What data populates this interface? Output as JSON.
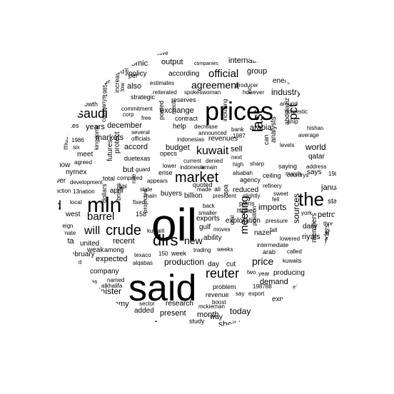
{
  "words": [
    {
      "t": "oil"
    },
    {
      "t": "said"
    },
    {
      "t": "prices"
    },
    {
      "t": "mln"
    },
    {
      "t": "the"
    },
    {
      "t": "dlrs"
    },
    {
      "t": "market"
    },
    {
      "t": "crude"
    },
    {
      "t": "reuter"
    },
    {
      "t": "saudi"
    },
    {
      "t": "kuwait"
    },
    {
      "t": "last"
    },
    {
      "t": "will"
    },
    {
      "t": "barrel"
    },
    {
      "t": "official"
    },
    {
      "t": "agreement"
    },
    {
      "t": "industry"
    },
    {
      "t": "production"
    },
    {
      "t": "price"
    },
    {
      "t": "new"
    },
    {
      "t": "world"
    },
    {
      "t": "january"
    },
    {
      "t": "petroleum"
    },
    {
      "t": "minister"
    },
    {
      "t": "pct"
    },
    {
      "t": "meeting"
    },
    {
      "t": "imports"
    },
    {
      "t": "demand"
    },
    {
      "t": "today"
    },
    {
      "t": "month"
    },
    {
      "t": "hold"
    },
    {
      "t": "exchange"
    },
    {
      "t": "sources"
    },
    {
      "t": "international"
    },
    {
      "t": "group"
    },
    {
      "t": "economic"
    },
    {
      "t": "output"
    },
    {
      "t": "policy"
    },
    {
      "t": "according"
    },
    {
      "t": "energy"
    },
    {
      "t": "also"
    },
    {
      "t": "years"
    },
    {
      "t": "december"
    },
    {
      "t": "arabia"
    },
    {
      "t": "accord"
    },
    {
      "t": "budget"
    },
    {
      "t": "sell"
    },
    {
      "t": "markets"
    },
    {
      "t": "exports"
    },
    {
      "t": "but"
    },
    {
      "t": "april"
    },
    {
      "t": "quota"
    },
    {
      "t": "recent"
    },
    {
      "t": "expected"
    },
    {
      "t": "economy"
    },
    {
      "t": "present"
    },
    {
      "t": "government"
    },
    {
      "t": "sheikh"
    },
    {
      "t": "reduced"
    },
    {
      "t": "producing"
    },
    {
      "t": "riyals"
    },
    {
      "t": "daily"
    },
    {
      "t": "states"
    },
    {
      "t": "traders"
    },
    {
      "t": "members"
    },
    {
      "t": "expenditure"
    },
    {
      "t": "since"
    },
    {
      "t": "research"
    },
    {
      "t": "added"
    },
    {
      "t": "way"
    },
    {
      "t": "day"
    },
    {
      "t": "cut"
    },
    {
      "t": "company"
    },
    {
      "t": "they"
    },
    {
      "t": "west"
    },
    {
      "t": "february"
    },
    {
      "t": "united"
    },
    {
      "t": "nymex"
    },
    {
      "t": "meet"
    },
    {
      "t": "now"
    },
    {
      "t": "must"
    },
    {
      "t": "emirates"
    },
    {
      "t": "growth"
    },
    {
      "t": "never"
    },
    {
      "t": "asked"
    },
    {
      "t": "per"
    },
    {
      "t": "strategic"
    },
    {
      "t": "reserves"
    },
    {
      "t": "contract"
    },
    {
      "t": "spokeswoman"
    },
    {
      "t": "producer"
    },
    {
      "t": "however"
    },
    {
      "t": "analysts"
    },
    {
      "t": "levels"
    },
    {
      "t": "saying"
    },
    {
      "t": "says"
    },
    {
      "t": "qatar"
    },
    {
      "t": "ceiling"
    },
    {
      "t": "refinery"
    },
    {
      "t": "sweet"
    },
    {
      "t": "fell"
    },
    {
      "t": "higher"
    },
    {
      "t": "plans"
    },
    {
      "t": "agency"
    },
    {
      "t": "billion"
    },
    {
      "t": "quoted"
    },
    {
      "t": "buyers"
    },
    {
      "t": "gulf"
    },
    {
      "t": "ability"
    },
    {
      "t": "exploration"
    },
    {
      "t": "pressure"
    },
    {
      "t": "nazer"
    },
    {
      "t": "arab"
    },
    {
      "t": "called"
    },
    {
      "t": "week"
    },
    {
      "t": "problem"
    },
    {
      "t": "revenue"
    },
    {
      "t": "export"
    },
    {
      "t": "study"
    },
    {
      "t": "boost"
    },
    {
      "t": "mckiernan"
    },
    {
      "t": "weeks"
    },
    {
      "t": "trading"
    },
    {
      "t": "moves"
    },
    {
      "t": "texaco"
    },
    {
      "t": "alqabas"
    },
    {
      "t": "sector"
    },
    {
      "t": "future"
    },
    {
      "t": "alkhalifa"
    },
    {
      "t": "arabias"
    },
    {
      "t": "named"
    },
    {
      "t": "published"
    },
    {
      "t": "estimate"
    },
    {
      "t": "foreign"
    },
    {
      "t": "action"
    },
    {
      "t": "13nation"
    },
    {
      "t": "development"
    },
    {
      "t": "total"
    },
    {
      "t": "compared"
    },
    {
      "t": "duetexas"
    },
    {
      "t": "officials"
    },
    {
      "t": "several"
    },
    {
      "t": "free"
    },
    {
      "t": "corp"
    },
    {
      "t": "commitment"
    },
    {
      "t": "estimates"
    },
    {
      "t": "reiterated"
    },
    {
      "t": "companies"
    },
    {
      "t": "effective"
    },
    {
      "t": "inc"
    },
    {
      "t": "bank"
    },
    {
      "t": "1987"
    },
    {
      "t": "announced"
    },
    {
      "t": "decrease"
    },
    {
      "t": "indonesias"
    },
    {
      "t": "help"
    },
    {
      "t": "posted"
    },
    {
      "t": "opecs"
    },
    {
      "t": "erise"
    },
    {
      "t": "lower"
    },
    {
      "t": "current"
    },
    {
      "t": "denied"
    },
    {
      "t": "indonesia"
    },
    {
      "t": "remain"
    },
    {
      "t": "revenues"
    },
    {
      "t": "next"
    },
    {
      "t": "high"
    },
    {
      "t": "sharp"
    },
    {
      "t": "alsabah"
    },
    {
      "t": "president"
    },
    {
      "t": "slightly"
    },
    {
      "t": "made"
    },
    {
      "t": "ali"
    },
    {
      "t": "state"
    },
    {
      "t": "main"
    },
    {
      "t": "appears"
    },
    {
      "t": "guard"
    },
    {
      "t": "fixed"
    },
    {
      "t": "brings"
    },
    {
      "t": "158"
    },
    {
      "t": "among"
    },
    {
      "t": "weak"
    },
    {
      "t": "150"
    },
    {
      "t": "projected"
    },
    {
      "t": "smaller"
    },
    {
      "t": "back"
    },
    {
      "t": "spa"
    },
    {
      "t": "real"
    },
    {
      "t": "position"
    },
    {
      "t": "intermediate"
    },
    {
      "t": "lowered"
    },
    {
      "t": "kuwaits"
    },
    {
      "t": "fall"
    },
    {
      "t": "two"
    },
    {
      "t": "say"
    },
    {
      "t": "198788"
    },
    {
      "t": "year"
    },
    {
      "t": "york"
    },
    {
      "t": "three"
    },
    {
      "t": "efp"
    },
    {
      "t": "grade"
    },
    {
      "t": "1985"
    },
    {
      "t": "address"
    },
    {
      "t": "countrys"
    },
    {
      "t": "march"
    },
    {
      "t": "average"
    },
    {
      "t": "hisham"
    },
    {
      "t": "ship"
    },
    {
      "t": "domestic"
    },
    {
      "t": "around"
    },
    {
      "t": "abdulaziz"
    },
    {
      "t": "can"
    },
    {
      "t": "companys"
    },
    {
      "t": "bbl"
    },
    {
      "t": "low"
    },
    {
      "t": "set"
    },
    {
      "t": "increase"
    },
    {
      "t": "kingdoms"
    },
    {
      "t": "agreed"
    },
    {
      "t": "six"
    },
    {
      "t": "1986"
    },
    {
      "t": "local"
    },
    {
      "t": "rule"
    },
    {
      "t": "futures"
    },
    {
      "t": "protect"
    },
    {
      "t": "kuwaiti"
    },
    {
      "t": "much"
    },
    {
      "t": "dollars"
    },
    {
      "t": "including"
    },
    {
      "t": "198586"
    },
    {
      "t": "wer"
    },
    {
      "t": "d"
    },
    {
      "t": "ere"
    }
  ]
}
